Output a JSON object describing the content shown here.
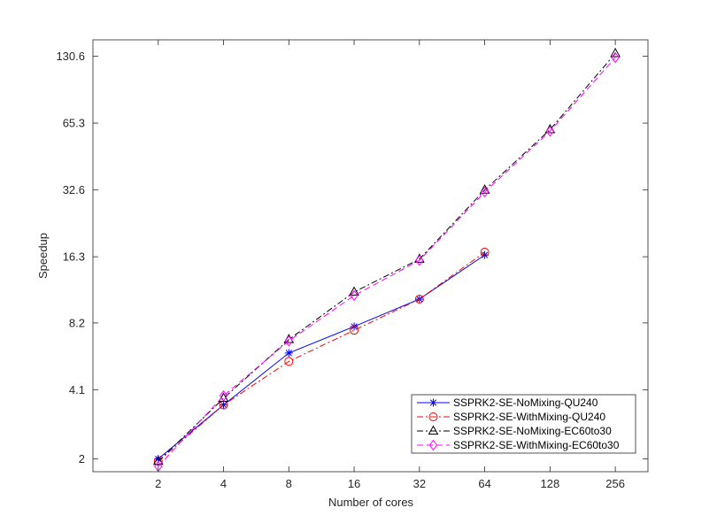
{
  "chart_data": {
    "type": "line",
    "xlabel": "Number of cores",
    "ylabel": "Speedup",
    "x_scale": "log2",
    "y_scale": "log2",
    "xlim": [
      1,
      362
    ],
    "ylim": [
      1.75,
      155
    ],
    "x_ticks": [
      2,
      4,
      8,
      16,
      32,
      64,
      128,
      256
    ],
    "x_tick_labels": [
      "2",
      "4",
      "8",
      "16",
      "32",
      "64",
      "128",
      "256"
    ],
    "y_ticks": [
      2,
      4.1,
      8.2,
      16.3,
      32.6,
      65.3,
      130.6
    ],
    "y_tick_labels": [
      "2",
      "4.1",
      "8.2",
      "16.3",
      "32.6",
      "65.3",
      "130.6"
    ],
    "grid": false,
    "legend_position": "bottom-right",
    "series": [
      {
        "name": "SSPRK2-SE-NoMixing-QU240",
        "color": "#0000ff",
        "line_style": "solid",
        "marker": "asterisk",
        "x": [
          2,
          4,
          8,
          16,
          32,
          64
        ],
        "y": [
          2.0,
          3.5,
          6.0,
          7.9,
          10.5,
          16.6
        ]
      },
      {
        "name": "SSPRK2-SE-WithMixing-QU240",
        "color": "#ff0000",
        "line_style": "dashdot",
        "marker": "circle",
        "x": [
          2,
          4,
          8,
          16,
          32,
          64
        ],
        "y": [
          1.95,
          3.5,
          5.5,
          7.6,
          10.5,
          17.1
        ]
      },
      {
        "name": "SSPRK2-SE-NoMixing-EC60to30",
        "color": "#000000",
        "line_style": "dashdot",
        "marker": "triangle",
        "x": [
          2,
          4,
          8,
          16,
          32,
          64,
          128,
          256
        ],
        "y": [
          1.95,
          3.75,
          6.9,
          11.3,
          15.9,
          32.6,
          61.0,
          134.5
        ]
      },
      {
        "name": "SSPRK2-SE-WithMixing-EC60to30",
        "color": "#ff00ff",
        "line_style": "dashed",
        "marker": "diamond",
        "x": [
          2,
          4,
          8,
          16,
          32,
          64,
          128,
          256
        ],
        "y": [
          1.85,
          3.85,
          6.8,
          10.9,
          15.7,
          31.9,
          60.0,
          129.0
        ]
      }
    ]
  }
}
